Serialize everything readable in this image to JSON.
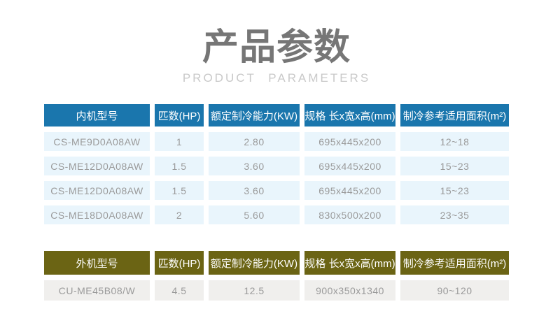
{
  "header": {
    "title": "产品参数",
    "subtitle": "PRODUCT PARAMETERS"
  },
  "colors": {
    "indoor_header_bg": "#1a76ad",
    "indoor_row_bg": "#e9f5fc",
    "outdoor_header_bg": "#6b6414",
    "outdoor_row_bg": "#f0efed",
    "header_text": "#ffffff",
    "cell_text": "#9a9a9a",
    "title_text": "#767676",
    "subtitle_text": "#c9c9c9"
  },
  "indoor_table": {
    "headers": [
      "内机型号",
      "匹数(HP)",
      "额定制冷能力(KW)",
      "规格 长x宽x高(mm)",
      "制冷参考适用面积(m²)"
    ],
    "rows": [
      [
        "CS-ME9D0A08AW",
        "1",
        "2.80",
        "695x445x200",
        "12~18"
      ],
      [
        "CS-ME12D0A08AW",
        "1.5",
        "3.60",
        "695x445x200",
        "15~23"
      ],
      [
        "CS-ME12D0A08AW",
        "1.5",
        "3.60",
        "695x445x200",
        "15~23"
      ],
      [
        "CS-ME18D0A08AW",
        "2",
        "5.60",
        "830x500x200",
        "23~35"
      ]
    ]
  },
  "outdoor_table": {
    "headers": [
      "外机型号",
      "匹数(HP)",
      "额定制冷能力(KW)",
      "规格 长x宽x高(mm)",
      "制冷参考适用面积(m²)"
    ],
    "rows": [
      [
        "CU-ME45B08/W",
        "4.5",
        "12.5",
        "900x350x1340",
        "90~120"
      ]
    ]
  }
}
